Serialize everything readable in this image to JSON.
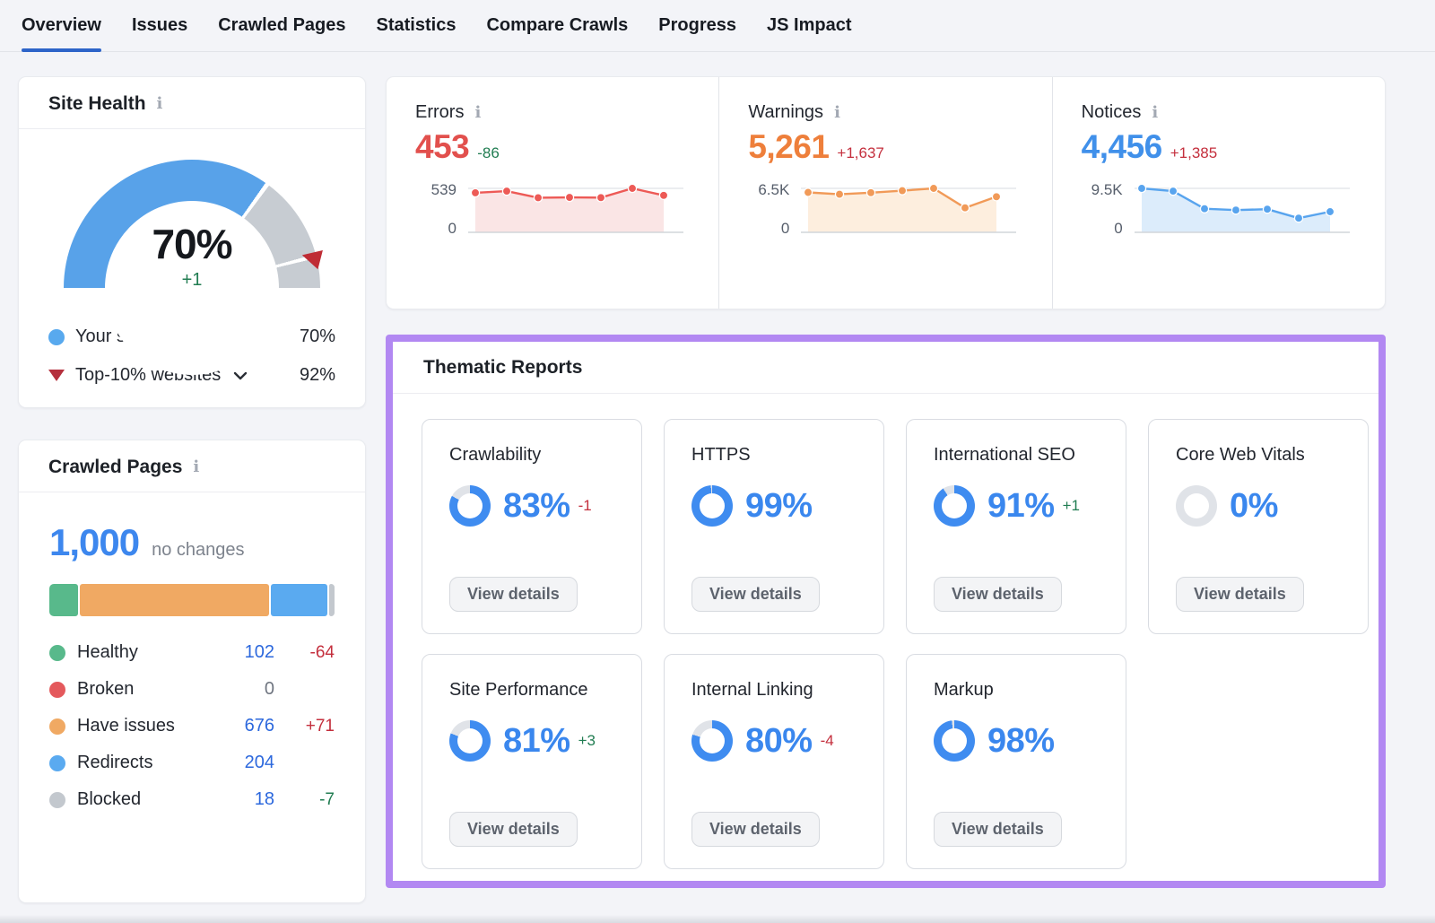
{
  "nav": {
    "tabs": [
      {
        "label": "Overview",
        "active": true
      },
      {
        "label": "Issues",
        "active": false
      },
      {
        "label": "Crawled Pages",
        "active": false
      },
      {
        "label": "Statistics",
        "active": false
      },
      {
        "label": "Compare Crawls",
        "active": false
      },
      {
        "label": "Progress",
        "active": false
      },
      {
        "label": "JS Impact",
        "active": false
      }
    ],
    "active_color": "#2d64c9"
  },
  "site_health": {
    "title": "Site Health",
    "score": "70%",
    "delta": "+1",
    "gauge": {
      "pct": 70,
      "benchmark_pct": 92,
      "arc_color": "#58a2e9",
      "rest_color": "#c7ccd2",
      "marker_color": "#bf2c35"
    },
    "legend": [
      {
        "label": "Your site",
        "value": "70%"
      },
      {
        "label": "Top-10% websites",
        "value": "92%"
      }
    ]
  },
  "metrics": [
    {
      "name": "Errors",
      "value": "453",
      "delta": "-86",
      "delta_tone": "green",
      "value_color": "#e2504d",
      "line_color": "#ed5a56",
      "fill_color": "#fae5e5",
      "chart": {
        "type": "line",
        "ymax_label": "539",
        "ymin_label": "0",
        "ymax": 539,
        "points": [
          485,
          505,
          425,
          428,
          426,
          539,
          453
        ]
      }
    },
    {
      "name": "Warnings",
      "value": "5,261",
      "delta": "+1,637",
      "delta_tone": "red",
      "value_color": "#ee7f3b",
      "line_color": "#f19a58",
      "fill_color": "#fdeede",
      "chart": {
        "type": "line",
        "ymax_label": "6.5K",
        "ymin_label": "0",
        "ymax": 6500,
        "points": [
          5900,
          5620,
          5860,
          6160,
          6500,
          3624,
          5261
        ]
      }
    },
    {
      "name": "Notices",
      "value": "4,456",
      "delta": "+1,385",
      "delta_tone": "red",
      "value_color": "#4090ea",
      "line_color": "#58a4ee",
      "fill_color": "#dcecfb",
      "chart": {
        "type": "line",
        "ymax_label": "9.5K",
        "ymin_label": "0",
        "ymax": 9500,
        "points": [
          9500,
          8900,
          5100,
          4800,
          5000,
          3071,
          4456
        ]
      }
    }
  ],
  "crawled_pages": {
    "title": "Crawled Pages",
    "total": "1,000",
    "note": "no changes",
    "segments": [
      {
        "label": "Healthy",
        "color": "#58b98b",
        "pct": 10.2,
        "value": "102",
        "delta": "-64",
        "delta_tone": "red",
        "muted": false
      },
      {
        "label": "Broken",
        "color": "#e4595c",
        "pct": 0,
        "value": "0",
        "delta": "",
        "delta_tone": "",
        "muted": true
      },
      {
        "label": "Have issues",
        "color": "#f0a963",
        "pct": 67.6,
        "value": "676",
        "delta": "+71",
        "delta_tone": "red",
        "muted": false
      },
      {
        "label": "Redirects",
        "color": "#5aaaf0",
        "pct": 20.4,
        "value": "204",
        "delta": "",
        "delta_tone": "",
        "muted": false
      },
      {
        "label": "Blocked",
        "color": "#c3c8ce",
        "pct": 1.8,
        "value": "18",
        "delta": "-7",
        "delta_tone": "green",
        "muted": false
      }
    ]
  },
  "thematic": {
    "title": "Thematic Reports",
    "button_label": "View details",
    "border_color": "#b288f2",
    "donut_color": "#3f8cf0",
    "donut_rest_color": "#e0e3e8",
    "pct_color": "#3a87ee",
    "cards": [
      {
        "title": "Crawlability",
        "pct": 83,
        "display": "83%",
        "delta": "-1",
        "delta_tone": "red"
      },
      {
        "title": "HTTPS",
        "pct": 99,
        "display": "99%",
        "delta": "",
        "delta_tone": ""
      },
      {
        "title": "International SEO",
        "pct": 91,
        "display": "91%",
        "delta": "+1",
        "delta_tone": "green"
      },
      {
        "title": "Core Web Vitals",
        "pct": 0,
        "display": "0%",
        "delta": "",
        "delta_tone": ""
      },
      {
        "title": "Site Performance",
        "pct": 81,
        "display": "81%",
        "delta": "+3",
        "delta_tone": "green"
      },
      {
        "title": "Internal Linking",
        "pct": 80,
        "display": "80%",
        "delta": "-4",
        "delta_tone": "red"
      },
      {
        "title": "Markup",
        "pct": 98,
        "display": "98%",
        "delta": "",
        "delta_tone": ""
      }
    ]
  }
}
